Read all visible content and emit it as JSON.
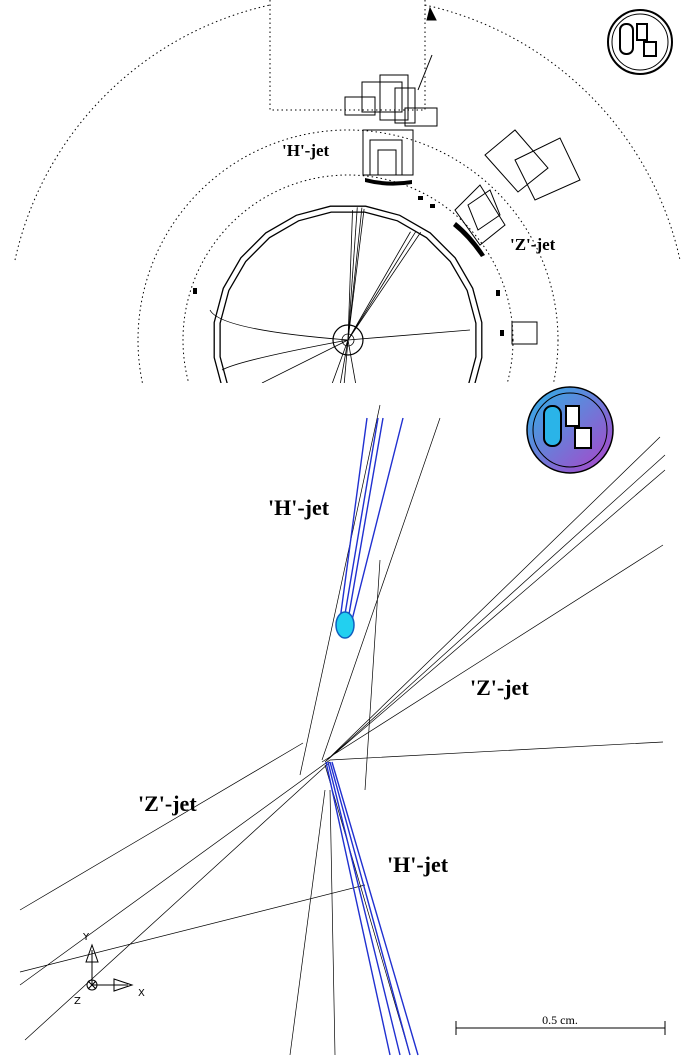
{
  "top_view": {
    "labels": [
      "'H'-jet",
      "'Z'-jet"
    ]
  },
  "zoom_view": {
    "labels": [
      "'H'-jet",
      "'Z'-jet",
      "'Z'-jet",
      "'H'-jet"
    ],
    "scale_bar": "0.5 cm.",
    "axes": [
      "Y",
      "X",
      "Z"
    ]
  }
}
